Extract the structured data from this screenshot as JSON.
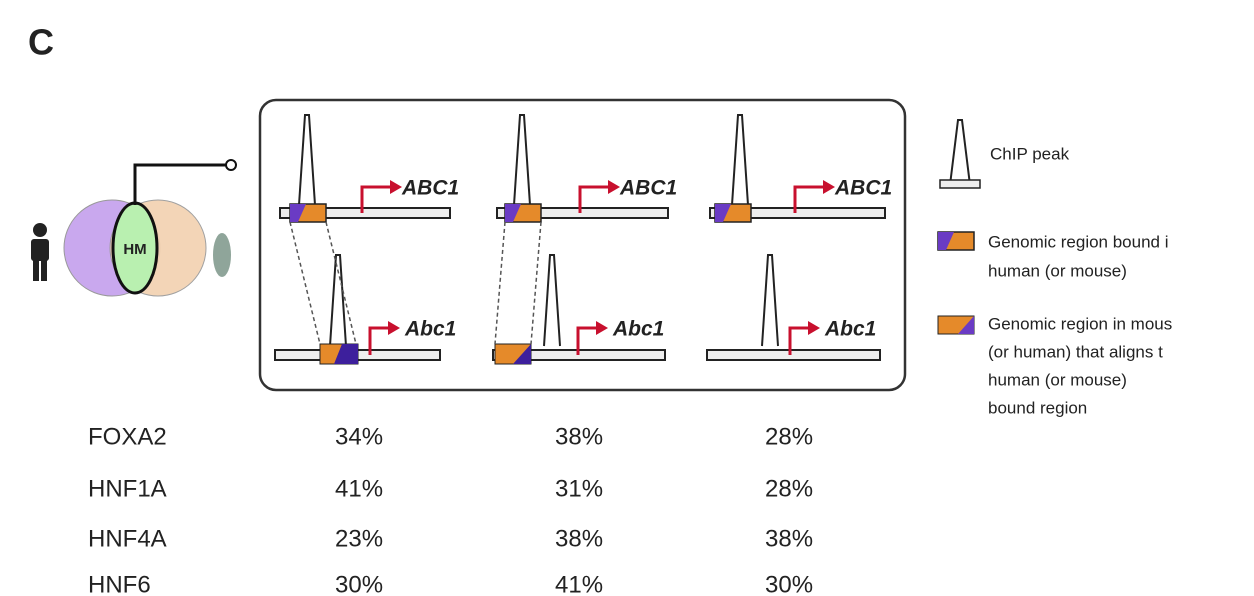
{
  "panel_label": "C",
  "venn": {
    "overlap_label": "HM"
  },
  "panels": [
    {
      "top_gene": "ABC1",
      "bottom_gene": "Abc1"
    },
    {
      "top_gene": "ABC1",
      "bottom_gene": "Abc1"
    },
    {
      "top_gene": "ABC1",
      "bottom_gene": "Abc1"
    }
  ],
  "legend": {
    "chip_peak": "ChIP peak",
    "bound_region": [
      "Genomic region  bound i",
      "human (or mouse)"
    ],
    "aligned_region": [
      "Genomic region  in mous",
      "(or human) that aligns t",
      "human (or mouse)",
      "bound region"
    ]
  },
  "table": {
    "rows": [
      [
        "FOXA2",
        "34%",
        "38%",
        "28%"
      ],
      [
        "HNF1A",
        "41%",
        "31%",
        "28%"
      ],
      [
        "HNF4A",
        "23%",
        "38%",
        "38%"
      ],
      [
        "HNF6",
        "30%",
        "41%",
        "30%"
      ]
    ]
  }
}
